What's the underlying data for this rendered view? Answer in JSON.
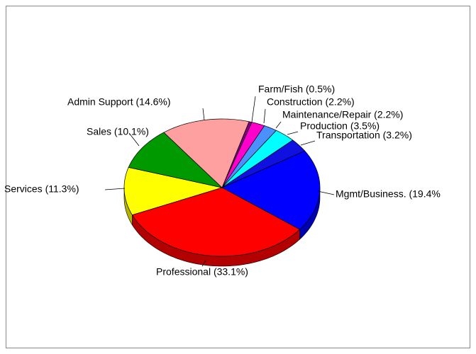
{
  "chart_data": {
    "type": "pie",
    "categories": [
      "Farm/Fish (0.5%)",
      "Construction (2.2%)",
      "Maintenance/Repair (2.2%)",
      "Production (3.5%)",
      "Transportation (3.2%)",
      "Mgmt/Business. (19.4%",
      "Professional (33.1%)",
      "Services (11.3%)",
      "Sales (10.1%)",
      "Admin Support (14.6%)"
    ],
    "values": [
      0.5,
      2.2,
      2.2,
      3.5,
      3.2,
      19.4,
      33.1,
      11.3,
      10.1,
      14.6
    ],
    "colors": [
      "#800080",
      "#ff00cc",
      "#4a90ff",
      "#00ffff",
      "#1010e0",
      "#0000ff",
      "#ff0000",
      "#ffff00",
      "#009900",
      "#ffa0a0"
    ],
    "three_d": true
  }
}
